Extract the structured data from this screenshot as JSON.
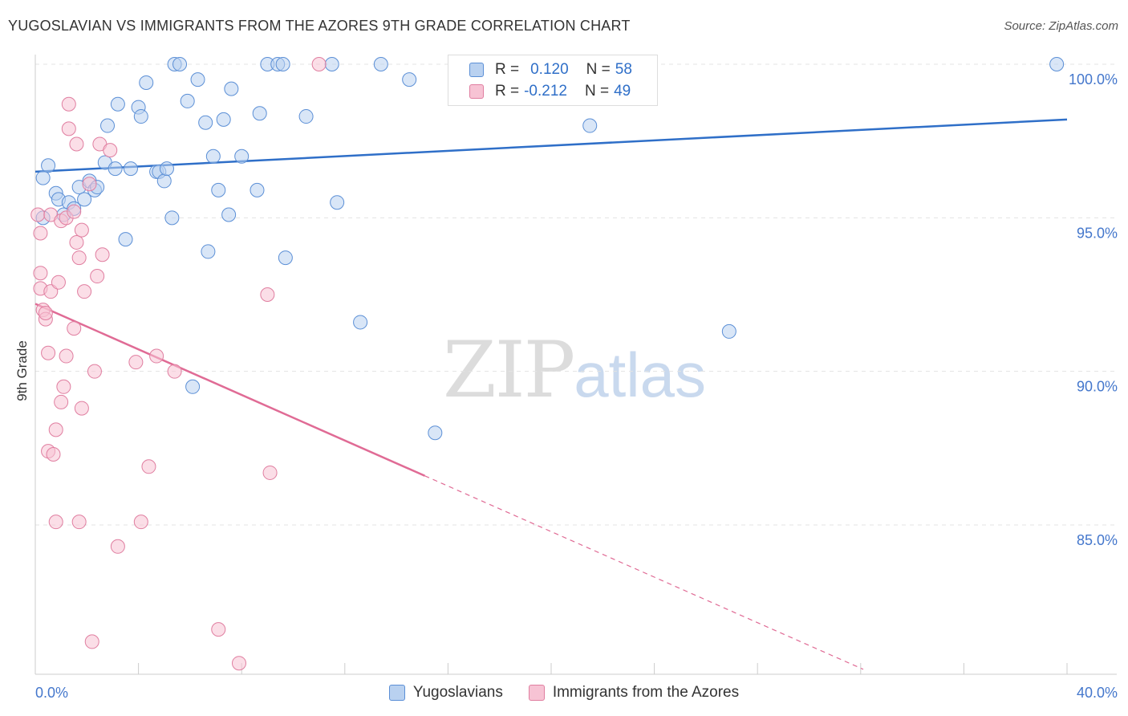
{
  "title": "YUGOSLAVIAN VS IMMIGRANTS FROM THE AZORES 9TH GRADE CORRELATION CHART",
  "source": "Source: ZipAtlas.com",
  "watermark": {
    "zip": "ZIP",
    "atlas": "atlas"
  },
  "legend": {
    "rows": [
      {
        "r_label": "R =",
        "r_value": "0.120",
        "n_label": "N =",
        "n_value": "58"
      },
      {
        "r_label": "R =",
        "r_value": "-0.212",
        "n_label": "N =",
        "n_value": "49"
      }
    ]
  },
  "colors": {
    "blue_fill": "#b9d1f0",
    "blue_stroke": "#5b8fd6",
    "blue_line": "#2f6fc8",
    "pink_fill": "#f7c3d4",
    "pink_stroke": "#e07ea0",
    "pink_line": "#e06b95",
    "axis_text": "#4477cc",
    "grid": "#e3e3e3"
  },
  "chart_data": {
    "type": "scatter",
    "title": "YUGOSLAVIAN VS IMMIGRANTS FROM THE AZORES 9TH GRADE CORRELATION CHART",
    "xlabel": "",
    "ylabel": "9th Grade",
    "xlim": [
      0,
      40
    ],
    "ylim": [
      80.3,
      100.5
    ],
    "x_tick_labels": [
      "0.0%",
      "40.0%"
    ],
    "y_ticks": [
      85,
      90,
      95,
      100
    ],
    "y_tick_labels": [
      "85.0%",
      "90.0%",
      "95.0%",
      "100.0%"
    ],
    "grid": true,
    "legend_position": "top-center",
    "series": [
      {
        "name": "Yugoslavians",
        "color": "#5b8fd6",
        "points": [
          [
            0.3,
            96.3
          ],
          [
            0.5,
            96.7
          ],
          [
            0.8,
            95.8
          ],
          [
            0.9,
            95.6
          ],
          [
            1.3,
            95.5
          ],
          [
            1.5,
            95.3
          ],
          [
            1.7,
            96.0
          ],
          [
            1.9,
            95.6
          ],
          [
            2.1,
            96.2
          ],
          [
            2.3,
            95.9
          ],
          [
            2.4,
            96.0
          ],
          [
            2.7,
            96.8
          ],
          [
            2.8,
            98.0
          ],
          [
            3.1,
            96.6
          ],
          [
            3.2,
            98.7
          ],
          [
            3.5,
            94.3
          ],
          [
            3.7,
            96.6
          ],
          [
            4.0,
            98.6
          ],
          [
            4.1,
            98.3
          ],
          [
            4.3,
            99.4
          ],
          [
            4.7,
            96.5
          ],
          [
            4.8,
            96.5
          ],
          [
            5.0,
            96.2
          ],
          [
            5.1,
            96.6
          ],
          [
            5.3,
            95.0
          ],
          [
            5.4,
            100.0
          ],
          [
            5.6,
            100.0
          ],
          [
            5.9,
            98.8
          ],
          [
            6.1,
            89.5
          ],
          [
            6.3,
            99.5
          ],
          [
            6.6,
            98.1
          ],
          [
            6.7,
            93.9
          ],
          [
            6.9,
            97.0
          ],
          [
            7.1,
            95.9
          ],
          [
            7.3,
            98.2
          ],
          [
            7.5,
            95.1
          ],
          [
            7.6,
            99.2
          ],
          [
            8.0,
            97.0
          ],
          [
            8.6,
            95.9
          ],
          [
            8.7,
            98.4
          ],
          [
            9.0,
            100.0
          ],
          [
            9.4,
            100.0
          ],
          [
            9.6,
            100.0
          ],
          [
            9.7,
            93.7
          ],
          [
            10.5,
            98.3
          ],
          [
            11.5,
            100.0
          ],
          [
            11.7,
            95.5
          ],
          [
            12.6,
            91.6
          ],
          [
            13.4,
            100.0
          ],
          [
            14.5,
            99.5
          ],
          [
            15.5,
            88.0
          ],
          [
            20.2,
            100.0
          ],
          [
            20.4,
            100.0
          ],
          [
            21.5,
            98.0
          ],
          [
            26.9,
            91.3
          ],
          [
            39.6,
            100.0
          ],
          [
            0.3,
            95.0
          ],
          [
            1.1,
            95.1
          ]
        ],
        "trend": {
          "x": [
            0,
            40
          ],
          "y": [
            96.5,
            98.2
          ]
        }
      },
      {
        "name": "Immigrants from the Azores",
        "color": "#e07ea0",
        "points": [
          [
            0.1,
            95.1
          ],
          [
            0.2,
            94.5
          ],
          [
            0.2,
            93.2
          ],
          [
            0.2,
            92.7
          ],
          [
            0.3,
            92.0
          ],
          [
            0.4,
            91.7
          ],
          [
            0.4,
            91.9
          ],
          [
            0.5,
            90.6
          ],
          [
            0.5,
            87.4
          ],
          [
            0.6,
            95.1
          ],
          [
            0.6,
            92.6
          ],
          [
            0.7,
            87.3
          ],
          [
            0.8,
            88.1
          ],
          [
            0.8,
            85.1
          ],
          [
            0.9,
            92.9
          ],
          [
            1.0,
            94.9
          ],
          [
            1.0,
            89.0
          ],
          [
            1.1,
            89.5
          ],
          [
            1.2,
            95.0
          ],
          [
            1.2,
            90.5
          ],
          [
            1.3,
            98.7
          ],
          [
            1.3,
            97.9
          ],
          [
            1.5,
            91.4
          ],
          [
            1.5,
            95.2
          ],
          [
            1.6,
            97.4
          ],
          [
            1.6,
            94.2
          ],
          [
            1.7,
            93.7
          ],
          [
            1.7,
            85.1
          ],
          [
            1.8,
            94.6
          ],
          [
            1.8,
            88.8
          ],
          [
            1.9,
            92.6
          ],
          [
            2.1,
            96.1
          ],
          [
            2.2,
            81.2
          ],
          [
            2.3,
            90.0
          ],
          [
            2.4,
            93.1
          ],
          [
            2.5,
            97.4
          ],
          [
            2.6,
            93.8
          ],
          [
            2.9,
            97.2
          ],
          [
            3.2,
            84.3
          ],
          [
            3.9,
            90.3
          ],
          [
            4.1,
            85.1
          ],
          [
            4.4,
            86.9
          ],
          [
            4.7,
            90.5
          ],
          [
            5.4,
            90.0
          ],
          [
            7.1,
            81.6
          ],
          [
            7.9,
            80.5
          ],
          [
            9.0,
            92.5
          ],
          [
            9.1,
            86.7
          ],
          [
            11.0,
            100.0
          ]
        ],
        "trend": {
          "x": [
            0,
            15.1
          ],
          "y": [
            92.2,
            86.6
          ]
        },
        "trend_dashed": {
          "x": [
            15.1,
            32.1
          ],
          "y": [
            86.6,
            80.3
          ]
        }
      }
    ]
  },
  "bottom_legend": [
    "Yugoslavians",
    "Immigrants from the Azores"
  ]
}
